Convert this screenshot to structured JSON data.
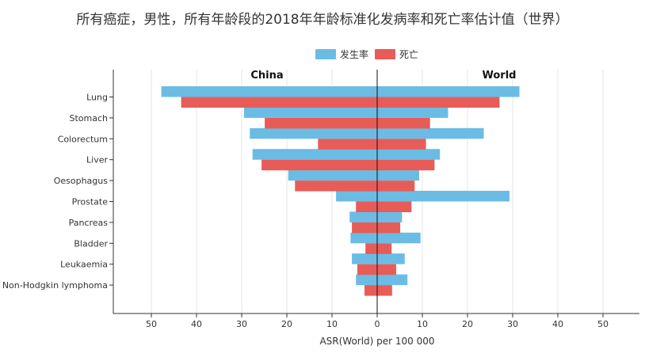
{
  "title": "所有癌症，男性，所有年龄段的2018年年龄标准化发病率和死亡率估计值（世界）",
  "colors": {
    "incidence": "#6bbce5",
    "mortality": "#e85c58"
  },
  "legend": {
    "incidence_label": "发生率",
    "mortality_label": "死亡"
  },
  "chart_data": {
    "type": "bar",
    "orientation": "horizontal-butterfly",
    "title": "所有癌症，男性，所有年龄段的2018年年龄标准化发病率和死亡率估计值（世界）",
    "xlabel": "ASR(World) per 100 000",
    "panels": [
      "China",
      "World"
    ],
    "xlim": [
      -58,
      58
    ],
    "xticks": [
      -50,
      -40,
      -30,
      -20,
      -10,
      0,
      10,
      20,
      30,
      40,
      50
    ],
    "xtick_labels": [
      "50",
      "40",
      "30",
      "20",
      "10",
      "0",
      "10",
      "20",
      "30",
      "40",
      "50"
    ],
    "grid": true,
    "legend_position": "top",
    "categories": [
      "Lung",
      "Stomach",
      "Colorectum",
      "Liver",
      "Oesophagus",
      "Prostate",
      "Pancreas",
      "Bladder",
      "Leukaemia",
      "Non-Hodgkin lymphoma"
    ],
    "series": [
      {
        "name": "发生率",
        "panel": "China",
        "values": [
          47.8,
          29.5,
          28.2,
          27.6,
          19.7,
          9.1,
          6.1,
          5.9,
          5.6,
          4.7
        ]
      },
      {
        "name": "死亡",
        "panel": "China",
        "values": [
          43.4,
          24.9,
          13.1,
          25.6,
          18.2,
          4.7,
          5.6,
          2.6,
          4.4,
          2.8
        ]
      },
      {
        "name": "发生率",
        "panel": "World",
        "values": [
          31.5,
          15.7,
          23.6,
          13.9,
          9.3,
          29.3,
          5.5,
          9.6,
          6.1,
          6.7
        ]
      },
      {
        "name": "死亡",
        "panel": "World",
        "values": [
          27.1,
          11.7,
          10.8,
          12.7,
          8.3,
          7.6,
          5.1,
          3.2,
          4.2,
          3.3
        ]
      }
    ]
  }
}
